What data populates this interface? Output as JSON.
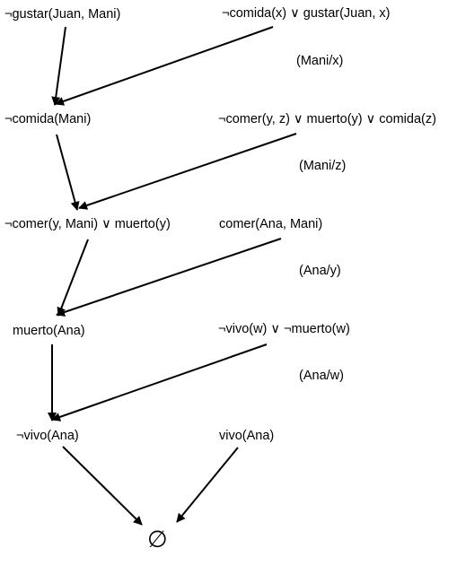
{
  "clauses": {
    "c1": "¬gustar(Juan, Mani)",
    "c2": "¬comida(x) ∨ gustar(Juan, x)",
    "r1": "¬comida(Mani)",
    "c3": "¬comer(y, z) ∨ muerto(y) ∨ comida(z)",
    "r2": "¬comer(y, Mani) ∨ muerto(y)",
    "c4": "comer(Ana, Mani)",
    "r3": "muerto(Ana)",
    "c5": "¬vivo(w) ∨ ¬muerto(w)",
    "r4": "¬vivo(Ana)",
    "c6": "vivo(Ana)",
    "empty": "∅"
  },
  "substitutions": {
    "s1": "(Mani/x)",
    "s2": "(Mani/z)",
    "s3": "(Ana/y)",
    "s4": "(Ana/w)"
  },
  "edges": [
    {
      "from": "c1",
      "to": "r1"
    },
    {
      "from": "c2",
      "to": "r1"
    },
    {
      "from": "r1",
      "to": "r2"
    },
    {
      "from": "c3",
      "to": "r2"
    },
    {
      "from": "r2",
      "to": "r3"
    },
    {
      "from": "c4",
      "to": "r3"
    },
    {
      "from": "r3",
      "to": "r4"
    },
    {
      "from": "c5",
      "to": "r4"
    },
    {
      "from": "r4",
      "to": "empty"
    },
    {
      "from": "c6",
      "to": "empty"
    }
  ]
}
